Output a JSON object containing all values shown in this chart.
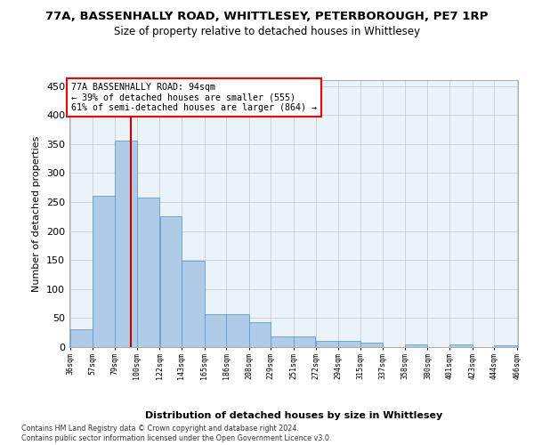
{
  "title": "77A, BASSENHALLY ROAD, WHITTLESEY, PETERBOROUGH, PE7 1RP",
  "subtitle": "Size of property relative to detached houses in Whittlesey",
  "xlabel": "Distribution of detached houses by size in Whittlesey",
  "ylabel": "Number of detached properties",
  "bar_color": "#aecce8",
  "bar_edgecolor": "#6699cc",
  "background_color": "#ffffff",
  "plot_bg_color": "#eaf2fa",
  "grid_color": "#cccccc",
  "annotation_text": "77A BASSENHALLY ROAD: 94sqm\n← 39% of detached houses are smaller (555)\n61% of semi-detached houses are larger (864) →",
  "vline_x": 94,
  "vline_color": "#cc0000",
  "footer": "Contains HM Land Registry data © Crown copyright and database right 2024.\nContains public sector information licensed under the Open Government Licence v3.0.",
  "bins": [
    36,
    57,
    79,
    100,
    122,
    143,
    165,
    186,
    208,
    229,
    251,
    272,
    294,
    315,
    337,
    358,
    380,
    401,
    423,
    444,
    466
  ],
  "bar_heights": [
    30,
    261,
    356,
    258,
    225,
    148,
    57,
    57,
    43,
    18,
    18,
    10,
    10,
    7,
    0,
    5,
    0,
    4,
    0,
    3
  ],
  "ylim": [
    0,
    460
  ],
  "yticks": [
    0,
    50,
    100,
    150,
    200,
    250,
    300,
    350,
    400,
    450
  ]
}
